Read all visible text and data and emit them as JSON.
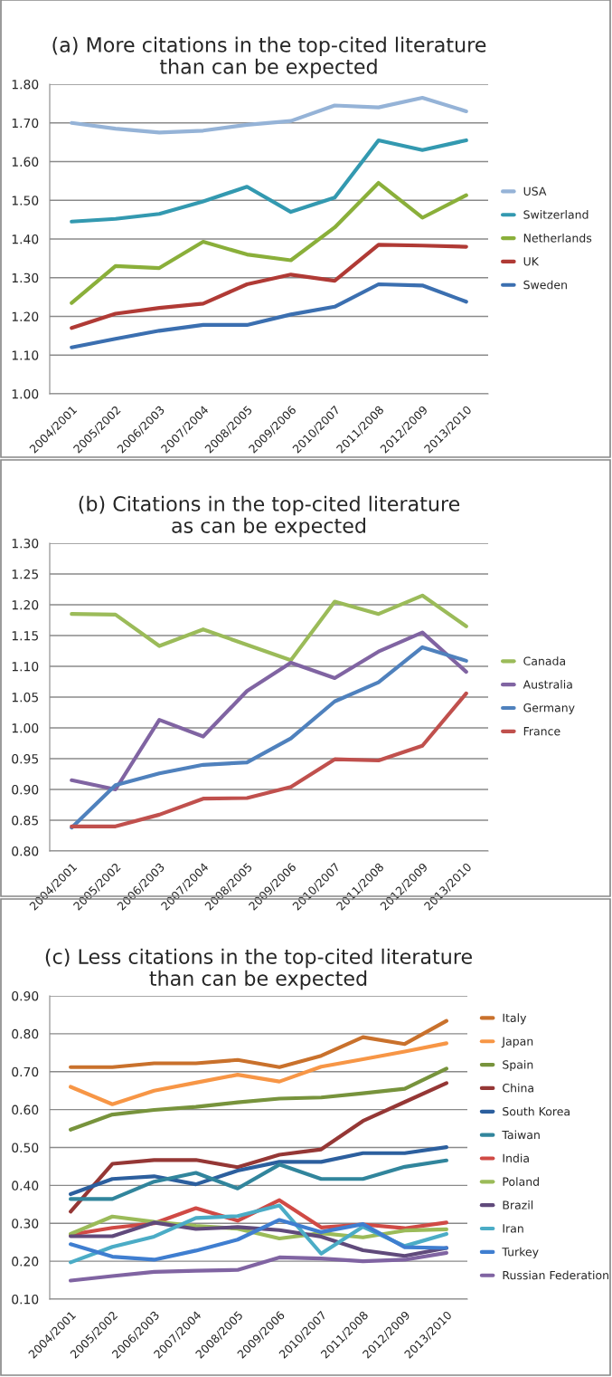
{
  "chart_data": [
    {
      "type": "line",
      "title": "(a) More citations in the top-cited literature\nthan can be expected",
      "categories": [
        "2004/2001",
        "2005/2002",
        "2006/2003",
        "2007/2004",
        "2008/2005",
        "2009/2006",
        "2010/2007",
        "2011/2008",
        "2012/2009",
        "2013/2010"
      ],
      "ylim": [
        1.0,
        1.8
      ],
      "yticks": [
        {
          "value": 1.0,
          "label": "1.00"
        },
        {
          "value": 1.1,
          "label": "1.10"
        },
        {
          "value": 1.2,
          "label": "1.20"
        },
        {
          "value": 1.3,
          "label": "1.30"
        },
        {
          "value": 1.4,
          "label": "1.40"
        },
        {
          "value": 1.5,
          "label": "1.50"
        },
        {
          "value": 1.6,
          "label": "1.60"
        },
        {
          "value": 1.7,
          "label": "1.70"
        },
        {
          "value": 1.8,
          "label": "1.80"
        }
      ],
      "grid": "y",
      "legend": "right",
      "marker": "none",
      "line_style": "solid",
      "series": [
        {
          "name": "USA",
          "color": "#95b3d7",
          "values": [
            1.7,
            1.685,
            1.675,
            1.68,
            1.695,
            1.705,
            1.745,
            1.74,
            1.765,
            1.73
          ]
        },
        {
          "name": "Switzerland",
          "color": "#3399b0",
          "values": [
            1.445,
            1.452,
            1.465,
            1.497,
            1.535,
            1.47,
            1.507,
            1.655,
            1.63,
            1.655
          ]
        },
        {
          "name": "Netherlands",
          "color": "#8aaf3a",
          "values": [
            1.235,
            1.33,
            1.325,
            1.393,
            1.36,
            1.345,
            1.43,
            1.545,
            1.455,
            1.513
          ]
        },
        {
          "name": "UK",
          "color": "#b03a35",
          "values": [
            1.17,
            1.207,
            1.222,
            1.233,
            1.283,
            1.308,
            1.292,
            1.385,
            1.383,
            1.38
          ]
        },
        {
          "name": "Sweden",
          "color": "#3b6fb0",
          "values": [
            1.12,
            1.142,
            1.163,
            1.178,
            1.178,
            1.205,
            1.225,
            1.283,
            1.28,
            1.238
          ]
        }
      ]
    },
    {
      "type": "line",
      "title": "(b) Citations in the top-cited literature\nas can be expected",
      "categories": [
        "2004/2001",
        "2005/2002",
        "2006/2003",
        "2007/2004",
        "2008/2005",
        "2009/2006",
        "2010/2007",
        "2011/2008",
        "2012/2009",
        "2013/2010"
      ],
      "ylim": [
        0.8,
        1.3
      ],
      "yticks": [
        {
          "value": 0.8,
          "label": "0.80"
        },
        {
          "value": 0.85,
          "label": "0.85"
        },
        {
          "value": 0.9,
          "label": "0.90"
        },
        {
          "value": 0.95,
          "label": "0.95"
        },
        {
          "value": 1.0,
          "label": "1.00"
        },
        {
          "value": 1.05,
          "label": "1.05"
        },
        {
          "value": 1.1,
          "label": "1.10"
        },
        {
          "value": 1.15,
          "label": "1.15"
        },
        {
          "value": 1.2,
          "label": "1.20"
        },
        {
          "value": 1.25,
          "label": "1.25"
        },
        {
          "value": 1.3,
          "label": "1.30"
        }
      ],
      "grid": "y",
      "legend": "right",
      "marker": "none",
      "line_style": "solid",
      "series": [
        {
          "name": "Canada",
          "color": "#9bbb59",
          "values": [
            1.185,
            1.184,
            1.133,
            1.16,
            1.135,
            1.11,
            1.205,
            1.185,
            1.215,
            1.165
          ]
        },
        {
          "name": "Australia",
          "color": "#8064a2",
          "values": [
            0.915,
            0.9,
            1.013,
            0.986,
            1.06,
            1.106,
            1.081,
            1.124,
            1.155,
            1.091
          ]
        },
        {
          "name": "Germany",
          "color": "#4f81bd",
          "values": [
            0.838,
            0.907,
            0.926,
            0.94,
            0.944,
            0.983,
            1.043,
            1.074,
            1.131,
            1.109
          ]
        },
        {
          "name": "France",
          "color": "#c0504d",
          "values": [
            0.84,
            0.84,
            0.859,
            0.885,
            0.886,
            0.904,
            0.949,
            0.947,
            0.971,
            1.056
          ]
        }
      ]
    },
    {
      "type": "line",
      "title": "(c) Less citations in the top-cited literature\nthan can be expected",
      "categories": [
        "2004/2001",
        "2005/2002",
        "2006/2003",
        "2007/2004",
        "2008/2005",
        "2009/2006",
        "2010/2007",
        "2011/2008",
        "2012/2009",
        "2013/2010"
      ],
      "ylim": [
        0.1,
        0.9
      ],
      "yticks": [
        {
          "value": 0.1,
          "label": "0.10"
        },
        {
          "value": 0.2,
          "label": "0.20"
        },
        {
          "value": 0.3,
          "label": "0.30"
        },
        {
          "value": 0.4,
          "label": "0.40"
        },
        {
          "value": 0.5,
          "label": "0.50"
        },
        {
          "value": 0.6,
          "label": "0.60"
        },
        {
          "value": 0.7,
          "label": "0.70"
        },
        {
          "value": 0.8,
          "label": "0.80"
        },
        {
          "value": 0.9,
          "label": "0.90"
        }
      ],
      "grid": "y",
      "legend": "right",
      "marker": "none",
      "line_style": "solid",
      "series": [
        {
          "name": "Italy",
          "color": "#c9712c",
          "values": [
            0.712,
            0.712,
            0.722,
            0.722,
            0.731,
            0.712,
            0.742,
            0.791,
            0.773,
            0.834
          ]
        },
        {
          "name": "Japan",
          "color": "#f79646",
          "values": [
            0.66,
            0.614,
            0.65,
            0.671,
            0.692,
            0.674,
            0.713,
            0.733,
            0.753,
            0.775
          ]
        },
        {
          "name": "Spain",
          "color": "#77933c",
          "values": [
            0.547,
            0.587,
            0.599,
            0.607,
            0.619,
            0.629,
            0.632,
            0.643,
            0.655,
            0.708
          ]
        },
        {
          "name": "China",
          "color": "#953735",
          "values": [
            0.331,
            0.457,
            0.467,
            0.467,
            0.448,
            0.481,
            0.495,
            0.57,
            0.62,
            0.67
          ]
        },
        {
          "name": "South Korea",
          "color": "#2c5f9e",
          "values": [
            0.377,
            0.417,
            0.424,
            0.403,
            0.439,
            0.462,
            0.462,
            0.485,
            0.485,
            0.501
          ]
        },
        {
          "name": "Taiwan",
          "color": "#31859c",
          "values": [
            0.364,
            0.364,
            0.41,
            0.433,
            0.392,
            0.455,
            0.417,
            0.417,
            0.449,
            0.466
          ]
        },
        {
          "name": "India",
          "color": "#d04a45",
          "values": [
            0.27,
            0.288,
            0.3,
            0.34,
            0.307,
            0.361,
            0.289,
            0.297,
            0.287,
            0.302
          ]
        },
        {
          "name": "Poland",
          "color": "#9bbb59",
          "values": [
            0.272,
            0.318,
            0.304,
            0.293,
            0.286,
            0.26,
            0.274,
            0.263,
            0.281,
            0.284
          ]
        },
        {
          "name": "Brazil",
          "color": "#604a7b",
          "values": [
            0.266,
            0.266,
            0.302,
            0.285,
            0.29,
            0.282,
            0.265,
            0.229,
            0.214,
            0.235
          ]
        },
        {
          "name": "Iran",
          "color": "#4bacc6",
          "values": [
            0.197,
            0.238,
            0.265,
            0.314,
            0.319,
            0.347,
            0.22,
            0.291,
            0.24,
            0.272
          ]
        },
        {
          "name": "Turkey",
          "color": "#3f7ed0",
          "values": [
            0.245,
            0.212,
            0.204,
            0.228,
            0.257,
            0.309,
            0.277,
            0.298,
            0.237,
            0.235
          ]
        },
        {
          "name": "Russian Federation",
          "color": "#8064a2",
          "values": [
            0.149,
            0.161,
            0.172,
            0.175,
            0.177,
            0.21,
            0.207,
            0.2,
            0.204,
            0.222
          ]
        }
      ]
    }
  ]
}
